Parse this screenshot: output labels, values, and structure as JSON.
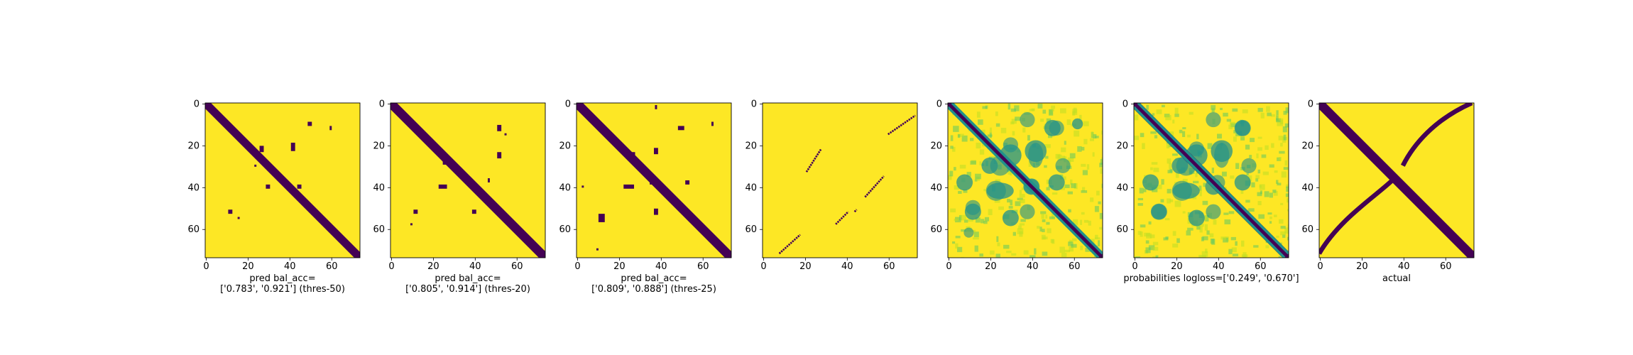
{
  "colors": {
    "high": "#fde725",
    "low": "#440154",
    "mid": "#21918c",
    "light": "#bddf26",
    "teal": "#5ec962"
  },
  "chart_data": [
    {
      "type": "heatmap",
      "grid_size": 74,
      "xticks": [
        0,
        20,
        40,
        60
      ],
      "yticks": [
        0,
        20,
        40,
        60
      ],
      "xlabel": [
        "pred bal_acc=",
        "['0.783', '0.921'] (thres-50)"
      ],
      "style": "binary",
      "diag_width": 1.6,
      "blobs": [
        [
          27,
          22,
          2,
          3
        ],
        [
          42,
          21,
          2,
          4
        ],
        [
          50,
          10,
          2,
          2
        ],
        [
          60,
          12,
          1,
          2
        ],
        [
          45,
          40,
          2,
          2
        ],
        [
          30,
          40,
          2,
          2
        ],
        [
          12,
          52,
          2,
          2
        ],
        [
          16,
          55,
          1,
          1
        ],
        [
          24,
          30,
          1,
          1
        ]
      ],
      "extra_lines": []
    },
    {
      "type": "heatmap",
      "grid_size": 74,
      "xticks": [
        0,
        20,
        40,
        60
      ],
      "yticks": [
        0,
        20,
        40,
        60
      ],
      "xlabel": [
        "pred bal_acc=",
        "['0.805', '0.914'] (thres-20)"
      ],
      "style": "binary",
      "diag_width": 1.8,
      "blobs": [
        [
          26,
          27,
          2,
          5
        ],
        [
          52,
          12,
          2,
          3
        ],
        [
          55,
          15,
          1,
          1
        ],
        [
          52,
          25,
          2,
          3
        ],
        [
          25,
          40,
          4,
          2
        ],
        [
          47,
          37,
          1,
          2
        ],
        [
          12,
          52,
          2,
          2
        ],
        [
          10,
          58,
          1,
          1
        ],
        [
          40,
          52,
          2,
          2
        ]
      ],
      "extra_lines": []
    },
    {
      "type": "heatmap",
      "grid_size": 74,
      "xticks": [
        0,
        20,
        40,
        60
      ],
      "yticks": [
        0,
        20,
        40,
        60
      ],
      "xlabel": [
        "pred bal_acc=",
        "['0.809', '0.888'] (thres-25)"
      ],
      "style": "binary",
      "diag_width": 1.8,
      "blobs": [
        [
          26,
          25,
          4,
          3
        ],
        [
          38,
          23,
          2,
          3
        ],
        [
          50,
          12,
          3,
          2
        ],
        [
          65,
          10,
          1,
          2
        ],
        [
          25,
          40,
          5,
          2
        ],
        [
          36,
          38,
          2,
          2
        ],
        [
          12,
          55,
          3,
          4
        ],
        [
          53,
          38,
          2,
          2
        ],
        [
          38,
          52,
          2,
          3
        ],
        [
          3,
          40,
          1,
          1
        ],
        [
          10,
          70,
          1,
          1
        ],
        [
          38,
          2,
          1,
          2
        ]
      ],
      "extra_lines": []
    },
    {
      "type": "heatmap",
      "grid_size": 74,
      "xticks": [
        0,
        20,
        40,
        60
      ],
      "yticks": [
        0,
        20,
        40,
        60
      ],
      "xlabel": [],
      "style": "sparse",
      "diag_width": 0,
      "blobs": [],
      "extra_lines": [
        [
          8,
          72,
          18,
          63
        ],
        [
          21,
          33,
          28,
          22
        ],
        [
          35,
          58,
          41,
          52
        ],
        [
          44,
          52,
          45,
          51
        ],
        [
          49,
          45,
          58,
          35
        ],
        [
          60,
          15,
          73,
          6
        ]
      ]
    },
    {
      "type": "heatmap",
      "grid_size": 74,
      "xticks": [
        0,
        20,
        40,
        60
      ],
      "yticks": [
        0,
        20,
        40,
        60
      ],
      "xlabel": [],
      "style": "prob",
      "diag_width": 2.4,
      "blobs": [
        [
          30,
          25,
          4,
          4
        ],
        [
          42,
          23,
          4,
          4
        ],
        [
          50,
          12,
          3,
          3
        ],
        [
          62,
          10,
          2,
          2
        ],
        [
          25,
          42,
          5,
          3
        ],
        [
          40,
          40,
          3,
          3
        ],
        [
          12,
          52,
          3,
          3
        ],
        [
          30,
          55,
          3,
          3
        ],
        [
          52,
          38,
          3,
          3
        ],
        [
          20,
          30,
          3,
          3
        ],
        [
          8,
          38,
          3,
          3
        ]
      ],
      "extra_lines": []
    },
    {
      "type": "heatmap",
      "grid_size": 74,
      "xticks": [
        0,
        20,
        40,
        60
      ],
      "yticks": [
        0,
        20,
        40,
        60
      ],
      "xlabel": [
        "probabilities logloss=['0.249', '0.670']"
      ],
      "style": "prob",
      "diag_width": 2.6,
      "blobs": [
        [
          30,
          25,
          4,
          4
        ],
        [
          42,
          23,
          4,
          4
        ],
        [
          52,
          12,
          3,
          3
        ],
        [
          25,
          42,
          5,
          3
        ],
        [
          38,
          40,
          3,
          3
        ],
        [
          12,
          52,
          3,
          3
        ],
        [
          30,
          55,
          3,
          3
        ],
        [
          52,
          38,
          3,
          3
        ],
        [
          22,
          30,
          3,
          3
        ],
        [
          8,
          38,
          3,
          3
        ]
      ],
      "extra_lines": []
    },
    {
      "type": "heatmap",
      "grid_size": 74,
      "xticks": [
        0,
        20,
        40,
        60
      ],
      "yticks": [
        0,
        20,
        40,
        60
      ],
      "xlabel": [
        "actual"
      ],
      "style": "actual",
      "diag_width": 1.8,
      "blobs": [],
      "extra_lines": []
    }
  ]
}
